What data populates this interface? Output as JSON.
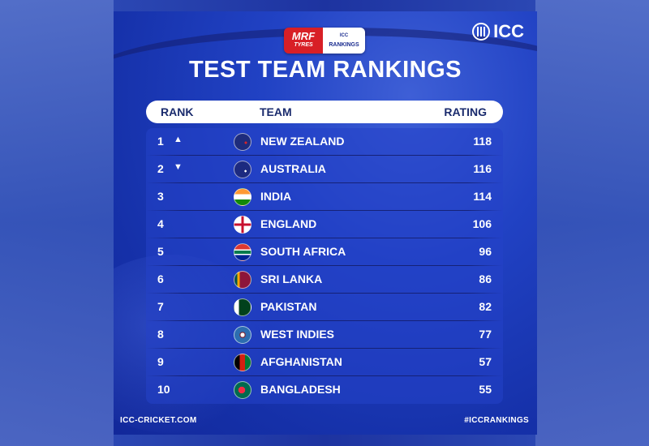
{
  "sponsor": {
    "brand_line1": "MRF",
    "brand_line2": "TYRES",
    "rank_line1": "ICC",
    "rank_line2": "RANKINGS"
  },
  "logo": {
    "text": "ICC",
    "icon": "icc-logo-icon"
  },
  "title": "TEST TEAM RANKINGS",
  "columns": {
    "rank": "RANK",
    "team": "TEAM",
    "rating": "RATING"
  },
  "rows": [
    {
      "rank": "1",
      "move": "▲",
      "team": "NEW ZEALAND",
      "rating": "118",
      "flag": "new-zealand-flag-icon"
    },
    {
      "rank": "2",
      "move": "▼",
      "team": "AUSTRALIA",
      "rating": "116",
      "flag": "australia-flag-icon"
    },
    {
      "rank": "3",
      "move": "",
      "team": "INDIA",
      "rating": "114",
      "flag": "india-flag-icon"
    },
    {
      "rank": "4",
      "move": "",
      "team": "ENGLAND",
      "rating": "106",
      "flag": "england-flag-icon"
    },
    {
      "rank": "5",
      "move": "",
      "team": "SOUTH AFRICA",
      "rating": "96",
      "flag": "south-africa-flag-icon"
    },
    {
      "rank": "6",
      "move": "",
      "team": "SRI LANKA",
      "rating": "86",
      "flag": "sri-lanka-flag-icon"
    },
    {
      "rank": "7",
      "move": "",
      "team": "PAKISTAN",
      "rating": "82",
      "flag": "pakistan-flag-icon"
    },
    {
      "rank": "8",
      "move": "",
      "team": "WEST INDIES",
      "rating": "77",
      "flag": "west-indies-flag-icon"
    },
    {
      "rank": "9",
      "move": "",
      "team": "AFGHANISTAN",
      "rating": "57",
      "flag": "afghanistan-flag-icon"
    },
    {
      "rank": "10",
      "move": "",
      "team": "BANGLADESH",
      "rating": "55",
      "flag": "bangladesh-flag-icon"
    }
  ],
  "footer": {
    "website": "ICC-CRICKET.COM",
    "hashtag": "#ICCRANKINGS"
  },
  "colors": {
    "background": "#1d33a0",
    "header_bg": "#ffffff",
    "header_text": "#1a2b6d",
    "text": "#ffffff",
    "mrf_red": "#d81f26"
  }
}
